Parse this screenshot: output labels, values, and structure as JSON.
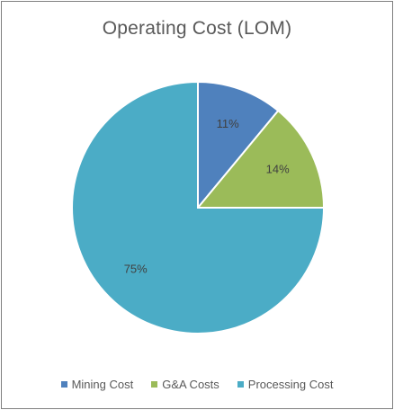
{
  "chart_data": {
    "type": "pie",
    "title": "Operating Cost (LOM)",
    "categories": [
      "Mining Cost",
      "G&A Costs",
      "Processing Cost"
    ],
    "values": [
      11,
      14,
      75
    ],
    "labels": [
      "11%",
      "14%",
      "75%"
    ],
    "colors": [
      "#4f81bd",
      "#9bbb59",
      "#4bacc6"
    ],
    "legend_position": "bottom",
    "start_angle": "12 o'clock, clockwise"
  }
}
